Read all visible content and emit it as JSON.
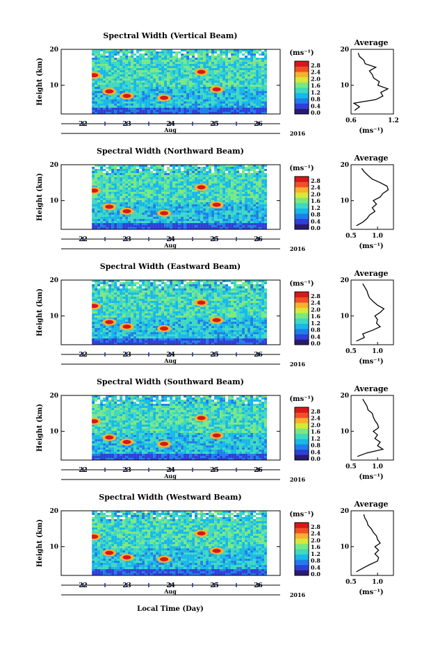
{
  "figure": {
    "xlabel": "Local Time (Day)",
    "month_label": "Aug",
    "year_label": "2016",
    "unit_label": "(ms⁻¹)",
    "avg_title": "Average",
    "avg_unit_label": "(ms⁻¹)",
    "colorbar_ticks": [
      "0.0",
      "0.4",
      "0.8",
      "1.2",
      "1.6",
      "2.0",
      "2.4",
      "2.8"
    ],
    "colorscale": [
      "#2a1a70",
      "#2f3fd8",
      "#1f7ee8",
      "#18b8e8",
      "#3fd8c0",
      "#7ae880",
      "#d8e83a",
      "#f8b030",
      "#f05028",
      "#d81818"
    ]
  },
  "chart_data": [
    {
      "type": "heatmap",
      "title": "Spectral Width (Vertical Beam)",
      "ylabel": "Height (km)",
      "xlabel": "Local Time (Day)",
      "x_ticks": [
        "22",
        "23",
        "24",
        "25",
        "26"
      ],
      "xlim": [
        21.5,
        26.5
      ],
      "y_ticks": [
        "20",
        "10"
      ],
      "ylim": [
        2,
        20
      ],
      "colorbar_range": [
        0.0,
        2.8
      ],
      "data_start_day": 22.2,
      "data_end_day": 26.2,
      "average_profile": {
        "title": "Average",
        "x_ticks": [
          "0.6",
          "1.2"
        ],
        "xlim": [
          0.6,
          1.2
        ],
        "ylim": [
          2,
          20
        ],
        "y_ticks": [
          "20",
          "10"
        ],
        "height_km": [
          3,
          4,
          5,
          6,
          7,
          8,
          9,
          10,
          11,
          12,
          13,
          14,
          15,
          16,
          17,
          18,
          19
        ],
        "values": [
          0.65,
          0.72,
          0.64,
          0.95,
          1.05,
          1.02,
          1.12,
          0.98,
          1.0,
          0.92,
          0.9,
          0.86,
          0.95,
          0.8,
          0.78,
          0.72,
          0.7
        ]
      }
    },
    {
      "type": "heatmap",
      "title": "Spectral Width (Northward Beam)",
      "ylabel": "Height (km)",
      "xlabel": "Local Time (Day)",
      "x_ticks": [
        "22",
        "23",
        "24",
        "25",
        "26"
      ],
      "xlim": [
        21.5,
        26.5
      ],
      "y_ticks": [
        "20",
        "10"
      ],
      "ylim": [
        2,
        20
      ],
      "colorbar_range": [
        0.0,
        2.8
      ],
      "data_start_day": 22.2,
      "data_end_day": 26.2,
      "average_profile": {
        "title": "Average",
        "x_ticks": [
          "0.5",
          "1.0"
        ],
        "xlim": [
          0.5,
          1.3
        ],
        "ylim": [
          2,
          20
        ],
        "y_ticks": [
          "20",
          "10"
        ],
        "height_km": [
          3,
          4,
          5,
          6,
          7,
          8,
          9,
          10,
          11,
          12,
          13,
          14,
          15,
          16,
          17,
          18,
          19
        ],
        "values": [
          0.6,
          0.72,
          0.8,
          0.85,
          0.95,
          0.9,
          0.98,
          0.92,
          1.05,
          1.1,
          1.2,
          1.18,
          1.05,
          0.9,
          0.82,
          0.75,
          0.7
        ]
      }
    },
    {
      "type": "heatmap",
      "title": "Spectral Width (Eastward Beam)",
      "ylabel": "Height (km)",
      "xlabel": "Local Time (Day)",
      "x_ticks": [
        "22",
        "23",
        "24",
        "25",
        "26"
      ],
      "xlim": [
        21.5,
        26.5
      ],
      "y_ticks": [
        "20",
        "10"
      ],
      "ylim": [
        2,
        20
      ],
      "colorbar_range": [
        0.0,
        2.8
      ],
      "data_start_day": 22.2,
      "data_end_day": 26.2,
      "average_profile": {
        "title": "Average",
        "x_ticks": [
          "0.5",
          "1.0"
        ],
        "xlim": [
          0.5,
          1.3
        ],
        "ylim": [
          2,
          20
        ],
        "y_ticks": [
          "20",
          "10"
        ],
        "height_km": [
          3,
          4,
          5,
          6,
          7,
          8,
          9,
          10,
          11,
          12,
          13,
          14,
          15,
          16,
          17,
          18,
          19
        ],
        "values": [
          0.6,
          0.75,
          0.72,
          0.9,
          1.05,
          0.98,
          1.0,
          0.95,
          1.05,
          1.12,
          1.0,
          0.92,
          0.85,
          0.82,
          0.8,
          0.76,
          0.72
        ]
      }
    },
    {
      "type": "heatmap",
      "title": "Spectral Width (Southward Beam)",
      "ylabel": "Height (km)",
      "xlabel": "Local Time (Day)",
      "x_ticks": [
        "22",
        "23",
        "24",
        "25",
        "26"
      ],
      "xlim": [
        21.5,
        26.5
      ],
      "y_ticks": [
        "20",
        "10"
      ],
      "ylim": [
        2,
        20
      ],
      "colorbar_range": [
        0.0,
        2.8
      ],
      "data_start_day": 22.2,
      "data_end_day": 26.2,
      "average_profile": {
        "title": "Average",
        "x_ticks": [
          "0.5",
          "1.0"
        ],
        "xlim": [
          0.5,
          1.3
        ],
        "ylim": [
          2,
          20
        ],
        "y_ticks": [
          "20",
          "10"
        ],
        "height_km": [
          3,
          4,
          5,
          6,
          7,
          8,
          9,
          10,
          11,
          12,
          13,
          14,
          15,
          16,
          17,
          18,
          19
        ],
        "values": [
          0.62,
          0.8,
          1.1,
          1.0,
          1.05,
          0.95,
          1.0,
          0.92,
          1.02,
          1.0,
          0.95,
          0.92,
          0.9,
          0.82,
          0.8,
          0.76,
          0.72
        ]
      }
    },
    {
      "type": "heatmap",
      "title": "Spectral Width (Westward Beam)",
      "ylabel": "Height (km)",
      "xlabel": "Local Time (Day)",
      "x_ticks": [
        "22",
        "23",
        "24",
        "25",
        "26"
      ],
      "xlim": [
        21.5,
        26.5
      ],
      "y_ticks": [
        "20",
        "10"
      ],
      "ylim": [
        2,
        20
      ],
      "colorbar_range": [
        0.0,
        2.8
      ],
      "data_start_day": 22.2,
      "data_end_day": 26.2,
      "average_profile": {
        "title": "Average",
        "x_ticks": [
          "0.5",
          "1.0"
        ],
        "xlim": [
          0.5,
          1.3
        ],
        "ylim": [
          2,
          20
        ],
        "y_ticks": [
          "20",
          "10"
        ],
        "height_km": [
          3,
          4,
          5,
          6,
          7,
          8,
          9,
          10,
          11,
          12,
          13,
          14,
          15,
          16,
          17,
          18,
          19
        ],
        "values": [
          0.6,
          0.72,
          0.85,
          1.0,
          1.02,
          0.95,
          1.02,
          0.95,
          1.05,
          1.0,
          0.98,
          0.92,
          0.88,
          0.82,
          0.8,
          0.76,
          0.74
        ]
      }
    }
  ]
}
